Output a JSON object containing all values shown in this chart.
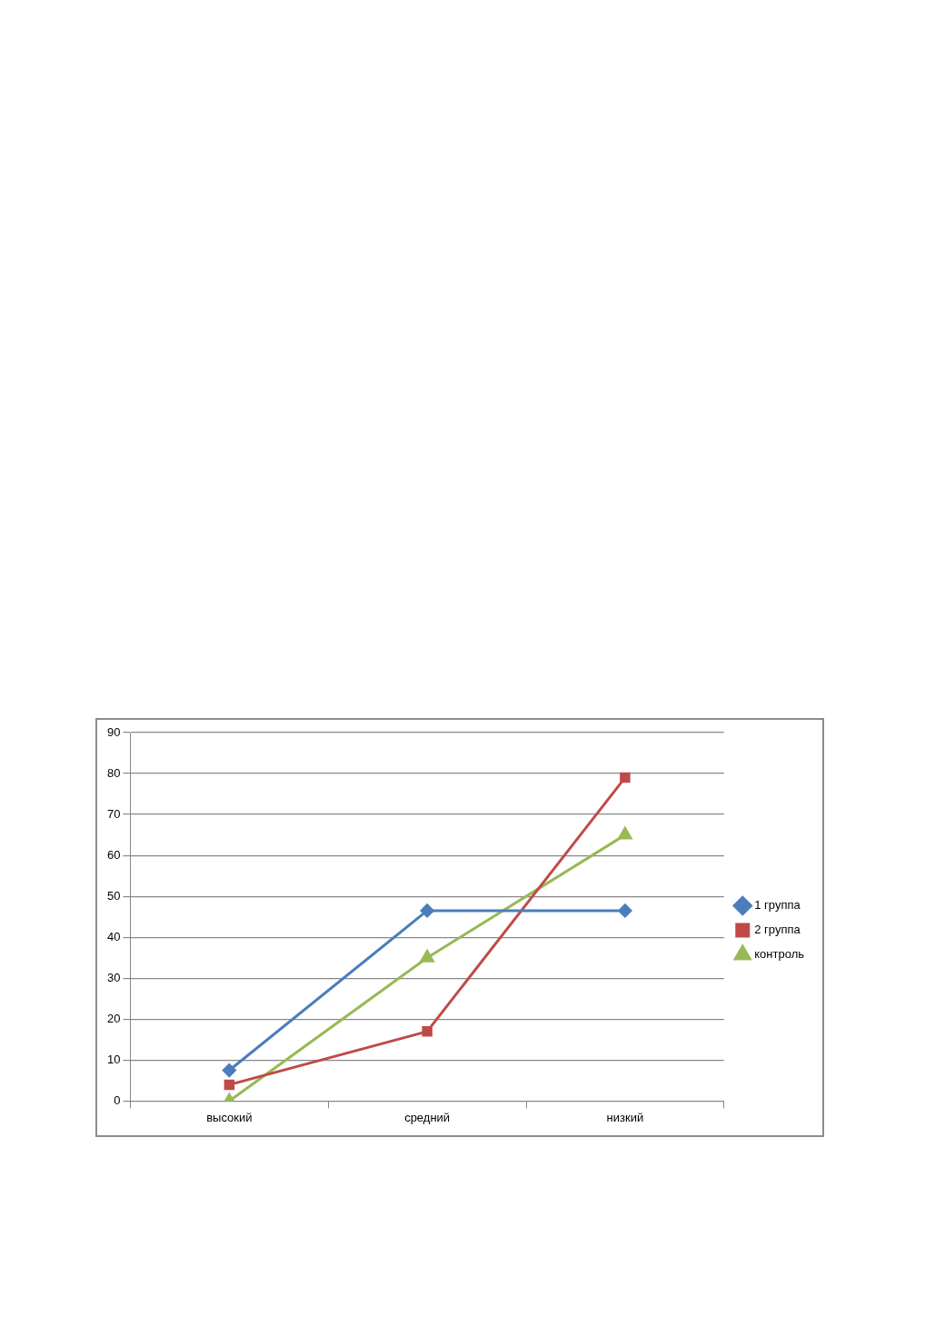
{
  "chart_data": {
    "type": "line",
    "categories": [
      "высокий",
      "средний",
      "низкий"
    ],
    "series": [
      {
        "name": "1 группа",
        "color": "#4a7ebb",
        "marker": "diamond",
        "values": [
          7.5,
          46.5,
          46.5
        ]
      },
      {
        "name": "2 группа",
        "color": "#be4b48",
        "marker": "square",
        "values": [
          4,
          17,
          79
        ]
      },
      {
        "name": "контроль",
        "color": "#98b954",
        "marker": "triangle",
        "values": [
          0,
          35,
          65
        ]
      }
    ],
    "ylim": [
      0,
      90
    ],
    "yticks": [
      0,
      10,
      20,
      30,
      40,
      50,
      60,
      70,
      80,
      90
    ],
    "grid": "y",
    "legend": "right"
  }
}
